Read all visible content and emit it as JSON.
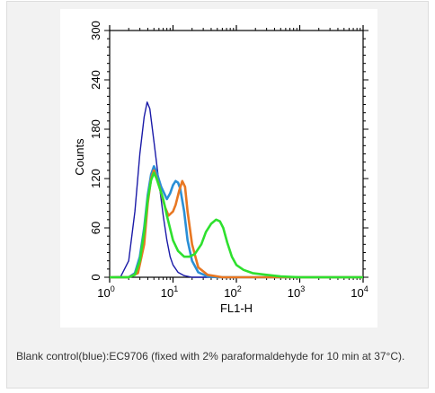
{
  "caption": "Blank control(blue):EC9706 (fixed with 2% paraformaldehyde for 10 min at 37°C).",
  "chart_data": {
    "type": "line",
    "xlabel": "FL1-H",
    "ylabel": "Counts",
    "xscale": "log",
    "xlim": [
      1,
      10000
    ],
    "ylim": [
      0,
      300
    ],
    "x_ticks": [
      {
        "base": "10",
        "exp": "0",
        "value": 1
      },
      {
        "base": "10",
        "exp": "1",
        "value": 10
      },
      {
        "base": "10",
        "exp": "2",
        "value": 100
      },
      {
        "base": "10",
        "exp": "3",
        "value": 1000
      },
      {
        "base": "10",
        "exp": "4",
        "value": 10000
      }
    ],
    "y_ticks": [
      "0",
      "60",
      "120",
      "180",
      "240",
      "300"
    ],
    "grid": false,
    "series": [
      {
        "color": "#1a1aa8",
        "points": [
          [
            1,
            0
          ],
          [
            1.5,
            1
          ],
          [
            2,
            20
          ],
          [
            2.5,
            80
          ],
          [
            3,
            150
          ],
          [
            3.5,
            195
          ],
          [
            3.9,
            213
          ],
          [
            4.3,
            205
          ],
          [
            5,
            165
          ],
          [
            6,
            115
          ],
          [
            7,
            75
          ],
          [
            8,
            45
          ],
          [
            9,
            25
          ],
          [
            10,
            15
          ],
          [
            12,
            6
          ],
          [
            15,
            2
          ],
          [
            20,
            0
          ],
          [
            10000,
            0
          ]
        ]
      },
      {
        "color": "#2a8fd6",
        "points": [
          [
            1,
            0
          ],
          [
            2,
            0
          ],
          [
            2.5,
            5
          ],
          [
            3,
            25
          ],
          [
            3.5,
            60
          ],
          [
            4,
            100
          ],
          [
            4.5,
            125
          ],
          [
            5,
            135
          ],
          [
            5.5,
            128
          ],
          [
            6.5,
            110
          ],
          [
            8,
            95
          ],
          [
            9,
            102
          ],
          [
            10,
            112
          ],
          [
            11,
            117
          ],
          [
            12,
            115
          ],
          [
            13,
            108
          ],
          [
            15,
            80
          ],
          [
            17,
            45
          ],
          [
            20,
            20
          ],
          [
            25,
            6
          ],
          [
            35,
            1
          ],
          [
            50,
            0
          ],
          [
            10000,
            0
          ]
        ]
      },
      {
        "color": "#e87722",
        "points": [
          [
            1,
            0
          ],
          [
            2,
            0
          ],
          [
            2.8,
            5
          ],
          [
            3.5,
            40
          ],
          [
            4,
            90
          ],
          [
            4.5,
            120
          ],
          [
            5,
            130
          ],
          [
            6,
            112
          ],
          [
            7.5,
            85
          ],
          [
            8.5,
            75
          ],
          [
            10,
            80
          ],
          [
            11,
            88
          ],
          [
            12.5,
            105
          ],
          [
            14,
            117
          ],
          [
            15.5,
            110
          ],
          [
            17,
            80
          ],
          [
            20,
            40
          ],
          [
            25,
            12
          ],
          [
            35,
            3
          ],
          [
            60,
            0
          ],
          [
            10000,
            0
          ]
        ]
      },
      {
        "color": "#2ee02e",
        "points": [
          [
            1,
            0
          ],
          [
            2,
            0
          ],
          [
            2.5,
            3
          ],
          [
            3,
            20
          ],
          [
            3.5,
            55
          ],
          [
            4,
            95
          ],
          [
            4.5,
            118
          ],
          [
            5,
            127
          ],
          [
            5.5,
            120
          ],
          [
            7,
            95
          ],
          [
            8,
            75
          ],
          [
            10,
            45
          ],
          [
            12,
            32
          ],
          [
            15,
            25
          ],
          [
            18,
            25
          ],
          [
            22,
            28
          ],
          [
            28,
            40
          ],
          [
            33,
            55
          ],
          [
            40,
            65
          ],
          [
            48,
            70
          ],
          [
            55,
            68
          ],
          [
            62,
            60
          ],
          [
            72,
            42
          ],
          [
            85,
            25
          ],
          [
            100,
            15
          ],
          [
            130,
            9
          ],
          [
            180,
            5
          ],
          [
            300,
            3
          ],
          [
            500,
            1
          ],
          [
            1000,
            0
          ],
          [
            10000,
            0
          ]
        ]
      }
    ]
  }
}
